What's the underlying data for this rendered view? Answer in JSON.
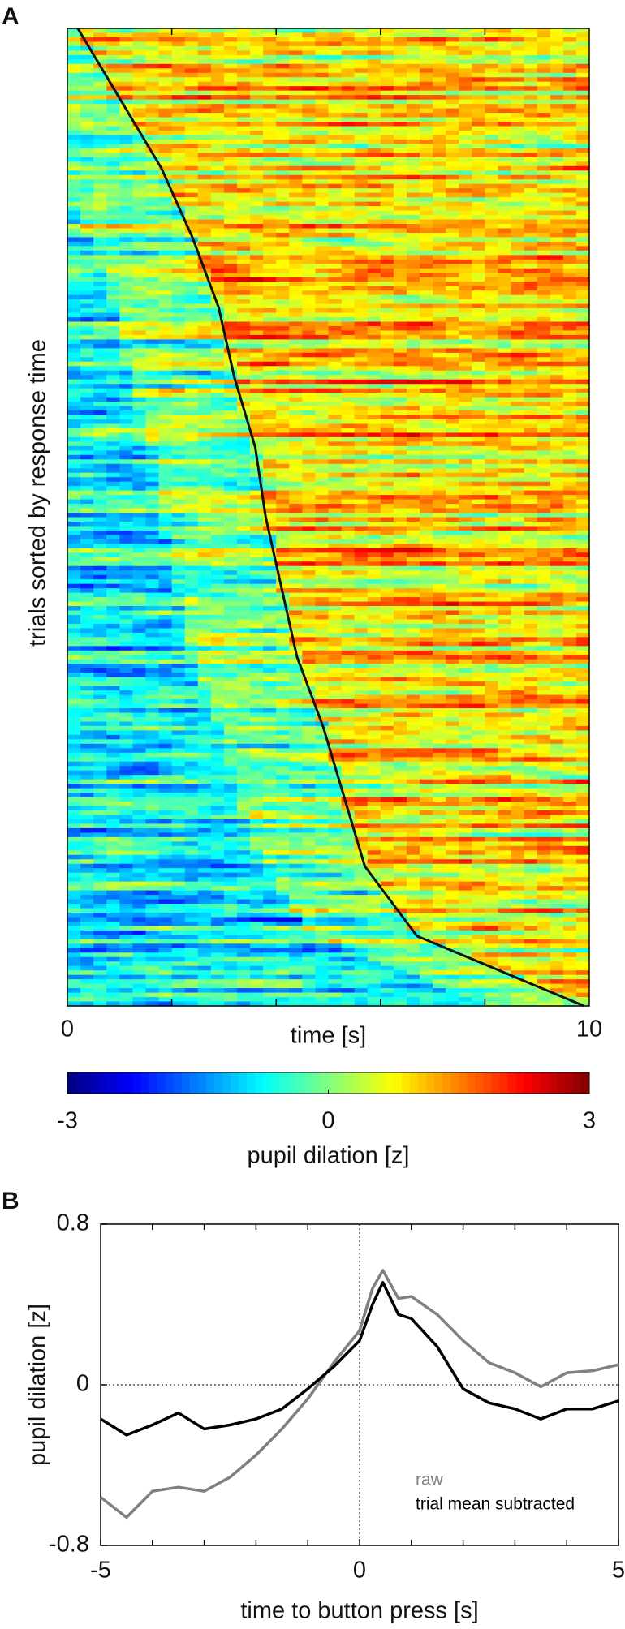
{
  "chart_data": [
    {
      "type": "heatmap",
      "panel_label": "A",
      "xlabel": "time [s]",
      "ylabel": "trials sorted by response time",
      "xlim": [
        0,
        10
      ],
      "xticks": [
        0,
        10
      ],
      "minor_xticks": [
        2,
        4,
        6,
        8
      ],
      "response_times": [
        0.2,
        1.0,
        1.8,
        2.4,
        2.9,
        3.2,
        3.6,
        3.8,
        4.1,
        4.4,
        4.9,
        5.3,
        5.7,
        6.7,
        9.9
      ]
    },
    {
      "type": "colorbar",
      "label": "pupil dilation [z]",
      "xlim": [
        -3,
        3
      ],
      "xticks": [
        -3,
        0,
        3
      ]
    },
    {
      "type": "line",
      "panel_label": "B",
      "xlabel": "time to button press [s]",
      "ylabel": "pupil dilation [z]",
      "xlim": [
        -5,
        5
      ],
      "xticks": [
        -5,
        0,
        5
      ],
      "minor_xticks": [
        -4,
        -3,
        -2,
        -1,
        1,
        2,
        3,
        4
      ],
      "ylim": [
        -0.8,
        0.8
      ],
      "yticks": [
        -0.8,
        0,
        0.8
      ],
      "ref_lines": {
        "x": 0,
        "y": 0
      },
      "legend": "lower right",
      "x": [
        -5,
        -4.5,
        -4,
        -3.5,
        -3,
        -2.5,
        -2,
        -1.5,
        -1,
        -0.5,
        0,
        0.25,
        0.45,
        0.75,
        1,
        1.5,
        2,
        2.5,
        3,
        3.5,
        4,
        4.5,
        5
      ],
      "series": [
        {
          "name": "raw",
          "color": "#808080",
          "values": [
            -0.56,
            -0.66,
            -0.53,
            -0.51,
            -0.53,
            -0.46,
            -0.35,
            -0.22,
            -0.07,
            0.11,
            0.27,
            0.48,
            0.57,
            0.43,
            0.44,
            0.35,
            0.22,
            0.11,
            0.06,
            -0.01,
            0.06,
            0.07,
            0.1
          ]
        },
        {
          "name": "trial mean subtracted",
          "color": "#000000",
          "values": [
            -0.17,
            -0.25,
            -0.2,
            -0.14,
            -0.22,
            -0.2,
            -0.17,
            -0.12,
            -0.02,
            0.09,
            0.22,
            0.4,
            0.51,
            0.35,
            0.33,
            0.19,
            -0.02,
            -0.09,
            -0.12,
            -0.17,
            -0.12,
            -0.12,
            -0.08
          ]
        }
      ]
    }
  ]
}
